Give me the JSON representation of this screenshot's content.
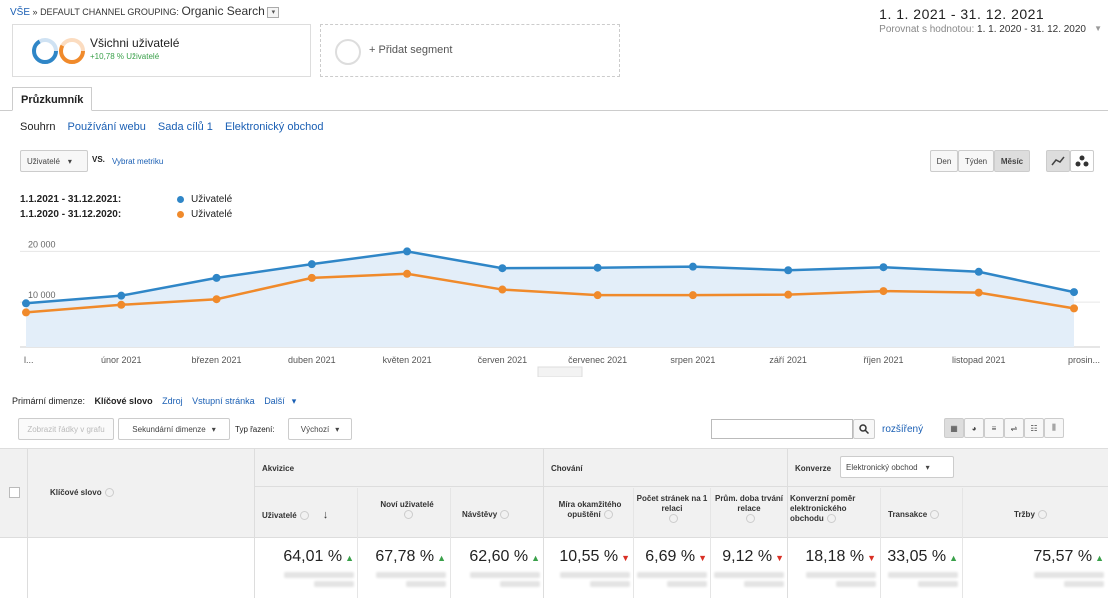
{
  "breadcrumb": {
    "all": "VŠE",
    "sep": "»",
    "grouping": "DEFAULT CHANNEL GROUPING:",
    "segment": "Organic Search"
  },
  "date_range": {
    "main": "1. 1. 2021 - 31. 12. 2021",
    "compare_prefix": "Porovnat s hodnotou:",
    "compare_value": "1. 1. 2020 - 31. 12. 2020"
  },
  "segments": {
    "active_title": "Všichni uživatelé",
    "active_sub": "+10,78 % Uživatelé",
    "add_label": "+ Přidat segment"
  },
  "tabs": [
    {
      "label": "Průzkumník"
    }
  ],
  "subnav": [
    {
      "label": "Souhrn"
    },
    {
      "label": "Používání webu"
    },
    {
      "label": "Sada cílů 1"
    },
    {
      "label": "Elektronický obchod"
    }
  ],
  "metric_select": {
    "value": "Uživatelé",
    "vs": "VS.",
    "pick": "Vybrat metriku"
  },
  "granularity": [
    {
      "label": "Den"
    },
    {
      "label": "Týden"
    },
    {
      "label": "Měsíc"
    }
  ],
  "legend": [
    {
      "period": "1.1.2021 - 31.12.2021:",
      "name": "Uživatelé",
      "color": "#2f86c7"
    },
    {
      "period": "1.1.2020 - 31.12.2020:",
      "name": "Uživatelé",
      "color": "#f08a2b"
    }
  ],
  "chart_data": {
    "type": "line",
    "x": [
      "l...",
      "únor 2021",
      "březen 2021",
      "duben 2021",
      "květen 2021",
      "červen 2021",
      "červenec 2021",
      "srpen 2021",
      "září 2021",
      "říjen 2021",
      "listopad 2021",
      "prosin..."
    ],
    "y_ticks": [
      "20 000",
      "10 000"
    ],
    "ylim": [
      0,
      24000
    ],
    "series": [
      {
        "name": "Uživatelé",
        "period": "2021",
        "color": "#2f86c7",
        "values": [
          8600,
          10100,
          13600,
          16300,
          18800,
          15500,
          15600,
          15800,
          15100,
          15700,
          14800,
          10800
        ]
      },
      {
        "name": "Uživatelé",
        "period": "2020",
        "color": "#f08a2b",
        "values": [
          6800,
          8300,
          9400,
          13600,
          14400,
          11300,
          10200,
          10200,
          10300,
          11000,
          10700,
          7600
        ]
      }
    ],
    "area_fill": "#e3eef9",
    "grid": true
  },
  "dimensions": {
    "label": "Primární dimenze:",
    "items": [
      {
        "label": "Klíčové slovo"
      },
      {
        "label": "Zdroj"
      },
      {
        "label": "Vstupní stránka"
      },
      {
        "label": "Další"
      }
    ]
  },
  "toolbar": {
    "plot_rows": "Zobrazit řádky v grafu",
    "secondary": "Sekundární dimenze",
    "sort_label": "Typ řazení:",
    "sort_value": "Výchozí",
    "advanced": "rozšířený"
  },
  "table": {
    "key_col": "Klíčové slovo",
    "groups": [
      {
        "label": "Akvizice"
      },
      {
        "label": "Chování"
      },
      {
        "label": "Konverze"
      }
    ],
    "conversion_select": "Elektronický obchod",
    "columns": [
      {
        "label": "Uživatelé"
      },
      {
        "label": "Noví uživatelé"
      },
      {
        "label": "Návštěvy"
      },
      {
        "label": "Míra okamžitého opuštění"
      },
      {
        "label": "Počet stránek na 1 relaci"
      },
      {
        "label": "Prům. doba trvání relace"
      },
      {
        "label": "Konverzní poměr elektronického obchodu"
      },
      {
        "label": "Transakce"
      },
      {
        "label": "Tržby"
      }
    ],
    "totals": [
      {
        "value": "64,01 %",
        "dir": "up"
      },
      {
        "value": "67,78 %",
        "dir": "up"
      },
      {
        "value": "62,60 %",
        "dir": "up"
      },
      {
        "value": "10,55 %",
        "dir": "down"
      },
      {
        "value": "6,69 %",
        "dir": "down"
      },
      {
        "value": "9,12 %",
        "dir": "down"
      },
      {
        "value": "18,18 %",
        "dir": "down"
      },
      {
        "value": "33,05 %",
        "dir": "up"
      },
      {
        "value": "75,57 %",
        "dir": "up"
      }
    ]
  }
}
